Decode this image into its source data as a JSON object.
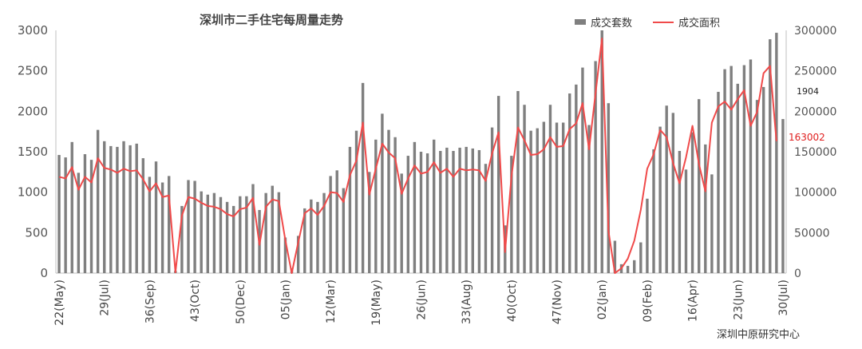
{
  "chart_data": {
    "type": "bar+line",
    "title": "深圳市二手住宅每周量走势",
    "source": "深圳中原研究中心",
    "legend_placement": "top-right",
    "colors": {
      "bars": "#7f7f7f",
      "line": "#f04a4a",
      "line_label": "#e02020"
    },
    "y_left": {
      "min": 0,
      "max": 3000,
      "ticks": [
        "0",
        "500",
        "1000",
        "1500",
        "2000",
        "2500",
        "3000"
      ]
    },
    "y_right": {
      "min": 0,
      "max": 300000,
      "ticks": [
        "0",
        "50000",
        "100000",
        "150000",
        "200000",
        "250000",
        "300000"
      ]
    },
    "x_tick_labels": [
      "22(May)",
      "29(Jul)",
      "36(Sep)",
      "43(Oct)",
      "50(Dec)",
      "05(Jan)",
      "12(Mar)",
      "19(May)",
      "26(Jun)",
      "33(Aug)",
      "40(Oct)",
      "47(Nov)",
      "02(Jan)",
      "09(Feb)",
      "16(Apr)",
      "23(Jun)",
      "30(Jul)"
    ],
    "x_tick_positions": [
      0,
      7,
      14,
      21,
      28,
      35,
      42,
      49,
      56,
      63,
      70,
      77,
      84,
      91,
      98,
      105,
      112
    ],
    "last_bar_label": "1904",
    "last_line_label": "163002",
    "series": [
      {
        "name": "成交套数",
        "kind": "bar",
        "axis": "left",
        "values": [
          1460,
          1430,
          1620,
          1240,
          1470,
          1400,
          1770,
          1630,
          1570,
          1560,
          1630,
          1580,
          1600,
          1420,
          1190,
          1380,
          1120,
          1200,
          30,
          830,
          1150,
          1140,
          1010,
          970,
          990,
          940,
          880,
          830,
          950,
          950,
          1100,
          780,
          990,
          1080,
          1000,
          440,
          60,
          460,
          800,
          910,
          880,
          990,
          1200,
          1270,
          1050,
          1560,
          1760,
          2350,
          1250,
          1650,
          1970,
          1770,
          1680,
          1230,
          1450,
          1620,
          1500,
          1480,
          1650,
          1510,
          1550,
          1510,
          1550,
          1560,
          1540,
          1520,
          1350,
          1800,
          2190,
          590,
          1450,
          2250,
          2080,
          1760,
          1790,
          1870,
          2080,
          1860,
          1860,
          2220,
          2330,
          2540,
          1830,
          2620,
          3000,
          2100,
          400,
          110,
          90,
          160,
          380,
          920,
          1530,
          1810,
          2070,
          1980,
          1510,
          1280,
          1740,
          2150,
          1590,
          1220,
          2240,
          2520,
          2560,
          2340,
          2570,
          2640,
          2140,
          2300,
          2890,
          2970,
          1904
        ]
      },
      {
        "name": "成交面积",
        "kind": "line",
        "axis": "right",
        "values": [
          119000,
          117000,
          131000,
          103000,
          119000,
          112000,
          142000,
          130000,
          128000,
          124000,
          129000,
          126000,
          127000,
          116000,
          101000,
          111000,
          94000,
          96000,
          1000,
          71000,
          94000,
          92000,
          87000,
          83000,
          82000,
          79000,
          73000,
          70000,
          79000,
          81000,
          93000,
          35000,
          82000,
          91000,
          89000,
          41000,
          0,
          38000,
          74000,
          80000,
          72000,
          83000,
          100000,
          99000,
          88000,
          121000,
          139000,
          186000,
          97000,
          129000,
          160000,
          149000,
          142000,
          98000,
          117000,
          133000,
          123000,
          125000,
          137000,
          124000,
          129000,
          119000,
          129000,
          127000,
          128000,
          127000,
          114000,
          148000,
          174000,
          26000,
          120000,
          180000,
          164000,
          146000,
          147000,
          153000,
          168000,
          156000,
          157000,
          178000,
          185000,
          210000,
          153000,
          222000,
          290000,
          52000,
          0,
          6000,
          18000,
          40000,
          78000,
          129000,
          147000,
          177000,
          168000,
          136000,
          111000,
          143000,
          182000,
          135000,
          101000,
          186000,
          206000,
          212000,
          202000,
          215000,
          226000,
          182000,
          199000,
          247000,
          256000,
          163002
        ]
      }
    ]
  }
}
